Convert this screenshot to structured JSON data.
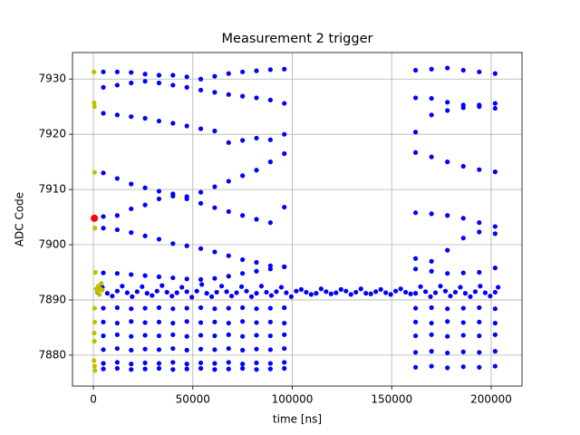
{
  "chart_data": {
    "type": "scatter",
    "title": "Measurement 2 trigger",
    "xlabel": "time [ns]",
    "ylabel": "ADC Code",
    "xlim": [
      -10500,
      215500
    ],
    "ylim": [
      7874.4,
      7934.8
    ],
    "xticks": [
      0,
      50000,
      100000,
      150000,
      200000
    ],
    "yticks": [
      7880,
      7890,
      7900,
      7910,
      7920,
      7930
    ],
    "grid": true,
    "series": [
      {
        "color": "#0000ff",
        "x": [
          2000,
          7000,
          12000,
          17000,
          22000,
          27000,
          32000,
          37000,
          42000,
          47000,
          52000,
          57000,
          62000,
          67000,
          72000,
          77000,
          82000,
          87000,
          92000,
          97000,
          102000,
          107000,
          112000,
          117000,
          122000,
          127000,
          132000,
          137000,
          142000,
          147000,
          152000,
          157000,
          162000,
          167000,
          172000,
          177000,
          182000,
          187000,
          192000,
          197000,
          202000
        ],
        "values": [
          7891.4,
          7891.2,
          7891.6,
          7891.3,
          7891.5,
          7891.2,
          7891.6,
          7891.4,
          7891.3,
          7891.5,
          7891.6,
          7891.2,
          7891.4,
          7891.5,
          7891.3,
          7891.6,
          7891.2,
          7891.4,
          7891.5,
          7891.3,
          7891.6,
          7891.4,
          7891.2,
          7891.5,
          7891.3,
          7891.6,
          7891.4,
          7891.2,
          7891.5,
          7891.3,
          7891.6,
          7891.4,
          7891.2,
          7891.5,
          7891.3,
          7891.6,
          7891.4,
          7891.2,
          7891.5,
          7891.3,
          7891.4
        ]
      },
      {
        "color": "#0000ff",
        "x": [
          4500,
          9500,
          14500,
          19500,
          24500,
          29500,
          34500,
          39500,
          44500,
          49500,
          54500,
          59500,
          64500,
          69500,
          74500,
          79500,
          84500,
          89500,
          94500,
          99500,
          104500,
          109500,
          114500,
          119500,
          124500,
          129500,
          134500,
          139500,
          144500,
          149500,
          154500,
          159500,
          164500,
          169500,
          174500,
          179500,
          184500,
          189500,
          194500,
          199500,
          203500
        ],
        "values": [
          7892.3,
          7890.7,
          7892.5,
          7890.6,
          7892.4,
          7890.8,
          7892.6,
          7890.7,
          7892.3,
          7890.5,
          7892.8,
          7890.6,
          7892.5,
          7890.7,
          7892.4,
          7890.6,
          7892.5,
          7890.8,
          7892.3,
          7890.6,
          7891.9,
          7891.0,
          7892.0,
          7891.1,
          7891.9,
          7891.0,
          7892.0,
          7891.1,
          7891.9,
          7891.0,
          7892.0,
          7891.1,
          7892.4,
          7890.6,
          7892.5,
          7890.7,
          7892.3,
          7890.6,
          7892.5,
          7890.7,
          7892.3
        ]
      },
      {
        "color": "#0000ff",
        "x": [
          5000,
          12000,
          19000,
          26000,
          33000,
          40000,
          47000,
          54000,
          61000,
          68000,
          75000,
          82000,
          89000,
          96000
        ],
        "values": [
          7931.3,
          7931.3,
          7931.2,
          7930.9,
          7930.7,
          7930.7,
          7930.4,
          7930.0,
          7930.5,
          7931.0,
          7931.3,
          7931.5,
          7931.7,
          7931.8
        ]
      },
      {
        "color": "#0000ff",
        "x": [
          5000,
          12000,
          19000,
          26000,
          33000,
          40000,
          47000,
          54000,
          61000,
          68000,
          75000,
          82000,
          89000,
          96000
        ],
        "values": [
          7928.5,
          7928.9,
          7929.3,
          7929.6,
          7929.3,
          7928.9,
          7928.5,
          7928.0,
          7927.6,
          7927.2,
          7926.9,
          7926.6,
          7926.2,
          7925.6
        ]
      },
      {
        "color": "#0000ff",
        "x": [
          5000,
          12000,
          19000,
          26000,
          33000,
          40000,
          47000,
          54000,
          61000,
          68000,
          75000,
          82000,
          89000,
          96000
        ],
        "values": [
          7923.8,
          7923.5,
          7923.2,
          7922.9,
          7922.4,
          7922.0,
          7921.5,
          7921.0,
          7920.6,
          7918.5,
          7918.9,
          7919.3,
          7919.0,
          7920.0
        ]
      },
      {
        "color": "#0000ff",
        "x": [
          5000,
          12000,
          19000,
          26000,
          33000,
          40000,
          47000,
          54000,
          61000,
          68000,
          75000,
          82000,
          89000,
          96000
        ],
        "values": [
          7913.0,
          7912.0,
          7911.0,
          7910.3,
          7909.7,
          7909.2,
          7908.7,
          7909.5,
          7910.5,
          7911.5,
          7912.5,
          7913.5,
          7915.0,
          7916.5
        ]
      },
      {
        "color": "#0000ff",
        "x": [
          5000,
          12000,
          19000,
          26000,
          33000,
          40000,
          47000,
          54000,
          61000,
          68000,
          75000,
          82000,
          89000,
          96000
        ],
        "values": [
          7905.1,
          7905.3,
          7906.5,
          7907.2,
          7908.3,
          7908.8,
          7908.3,
          7907.5,
          7906.7,
          7906.0,
          7905.3,
          7904.6,
          7904.0,
          7906.8
        ]
      },
      {
        "color": "#0000ff",
        "x": [
          5000,
          12000,
          19000,
          26000,
          33000,
          40000,
          47000,
          54000,
          61000,
          68000,
          75000,
          82000,
          89000,
          96000
        ],
        "values": [
          7903.0,
          7902.7,
          7902.2,
          7901.6,
          7901.0,
          7900.2,
          7899.8,
          7899.3,
          7898.7,
          7898.0,
          7897.3,
          7896.8,
          7896.2,
          7896.0
        ]
      },
      {
        "color": "#0000ff",
        "x": [
          5000,
          12000,
          19000,
          26000,
          33000,
          40000,
          47000,
          54000,
          61000,
          68000,
          75000,
          82000,
          89000,
          96000
        ],
        "values": [
          7894.9,
          7894.8,
          7894.6,
          7894.4,
          7894.2,
          7894.0,
          7893.8,
          7893.7,
          7893.9,
          7894.3,
          7894.8,
          7895.2,
          7895.6,
          7896.0
        ]
      },
      {
        "color": "#0000ff",
        "x": [
          5000,
          12000,
          19000,
          26000,
          33000,
          40000,
          47000,
          54000,
          61000,
          68000,
          75000,
          82000,
          89000,
          96000
        ],
        "values": [
          7888.5,
          7888.6,
          7888.4,
          7888.5,
          7888.6,
          7888.4,
          7888.5,
          7888.6,
          7888.4,
          7888.5,
          7888.6,
          7888.4,
          7888.5,
          7888.6
        ]
      },
      {
        "color": "#0000ff",
        "x": [
          5000,
          12000,
          19000,
          26000,
          33000,
          40000,
          47000,
          54000,
          61000,
          68000,
          75000,
          82000,
          89000,
          96000
        ],
        "values": [
          7886.0,
          7885.8,
          7886.1,
          7885.9,
          7886.0,
          7885.8,
          7886.1,
          7885.9,
          7886.0,
          7885.8,
          7886.1,
          7885.9,
          7886.0,
          7885.8
        ]
      },
      {
        "color": "#0000ff",
        "x": [
          5000,
          12000,
          19000,
          26000,
          33000,
          40000,
          47000,
          54000,
          61000,
          68000,
          75000,
          82000,
          89000,
          96000
        ],
        "values": [
          7883.5,
          7883.7,
          7883.4,
          7883.6,
          7883.5,
          7883.7,
          7883.4,
          7883.6,
          7883.5,
          7883.7,
          7883.4,
          7883.6,
          7883.5,
          7883.7
        ]
      },
      {
        "color": "#0000ff",
        "x": [
          5000,
          12000,
          19000,
          26000,
          33000,
          40000,
          47000,
          54000,
          61000,
          68000,
          75000,
          82000,
          89000,
          96000
        ],
        "values": [
          7881.0,
          7881.2,
          7880.9,
          7881.1,
          7881.0,
          7881.2,
          7880.9,
          7881.1,
          7881.0,
          7881.2,
          7880.9,
          7881.1,
          7881.0,
          7881.2
        ]
      },
      {
        "color": "#0000ff",
        "x": [
          5000,
          12000,
          19000,
          26000,
          33000,
          40000,
          47000,
          54000,
          61000,
          68000,
          75000,
          82000,
          89000,
          96000
        ],
        "values": [
          7878.5,
          7878.7,
          7878.4,
          7878.6,
          7878.5,
          7878.7,
          7878.4,
          7878.6,
          7878.5,
          7878.7,
          7878.4,
          7878.6,
          7878.5,
          7878.7
        ]
      },
      {
        "color": "#0000ff",
        "x": [
          5000,
          12000,
          19000,
          26000,
          33000,
          40000,
          47000,
          54000,
          61000,
          68000,
          75000,
          82000,
          89000,
          96000
        ],
        "values": [
          7877.5,
          7877.6,
          7877.4,
          7877.5,
          7877.6,
          7877.4,
          7877.5,
          7877.6,
          7877.4,
          7877.5,
          7877.6,
          7877.4,
          7877.5,
          7877.6
        ]
      },
      {
        "color": "#0000ff",
        "x": [
          162000,
          170000,
          178000,
          186000,
          194000,
          202000
        ],
        "values": [
          7931.6,
          7931.8,
          7932.0,
          7931.6,
          7931.3,
          7931.0
        ]
      },
      {
        "color": "#0000ff",
        "x": [
          162000,
          170000,
          178000,
          186000,
          194000,
          202000
        ],
        "values": [
          7926.6,
          7926.5,
          7925.8,
          7925.3,
          7925.0,
          7924.7
        ]
      },
      {
        "color": "#0000ff",
        "x": [
          162000,
          170000,
          178000,
          186000,
          194000,
          202000
        ],
        "values": [
          7920.4,
          7923.5,
          7924.3,
          7924.8,
          7925.3,
          7925.6
        ]
      },
      {
        "color": "#0000ff",
        "x": [
          162000,
          170000,
          178000,
          186000,
          194000,
          202000
        ],
        "values": [
          7916.7,
          7915.9,
          7915.0,
          7914.2,
          7913.6,
          7913.2
        ]
      },
      {
        "color": "#0000ff",
        "x": [
          162000,
          170000,
          178000,
          186000,
          194000,
          202000
        ],
        "values": [
          7905.8,
          7905.6,
          7905.3,
          7904.8,
          7904.0,
          7903.3
        ]
      },
      {
        "color": "#0000ff",
        "x": [
          162000,
          170000,
          178000,
          186000,
          194000,
          202000
        ],
        "values": [
          7897.5,
          7897.0,
          7899.0,
          7901.2,
          7902.3,
          7902.0
        ]
      },
      {
        "color": "#0000ff",
        "x": [
          162000,
          170000,
          178000,
          186000,
          194000,
          202000
        ],
        "values": [
          7895.6,
          7895.2,
          7894.8,
          7894.9,
          7895.0,
          7895.8
        ]
      },
      {
        "color": "#0000ff",
        "x": [
          162000,
          170000,
          178000,
          186000,
          194000,
          202000
        ],
        "values": [
          7888.5,
          7888.6,
          7888.4,
          7888.5,
          7888.6,
          7888.4
        ]
      },
      {
        "color": "#0000ff",
        "x": [
          162000,
          170000,
          178000,
          186000,
          194000,
          202000
        ],
        "values": [
          7886.0,
          7885.8,
          7886.1,
          7885.9,
          7886.0,
          7885.8
        ]
      },
      {
        "color": "#0000ff",
        "x": [
          162000,
          170000,
          178000,
          186000,
          194000,
          202000
        ],
        "values": [
          7883.5,
          7883.7,
          7883.4,
          7883.6,
          7883.5,
          7883.7
        ]
      },
      {
        "color": "#0000ff",
        "x": [
          162000,
          170000,
          178000,
          186000,
          194000,
          202000
        ],
        "values": [
          7880.5,
          7880.7,
          7880.4,
          7880.6,
          7880.5,
          7880.7
        ]
      },
      {
        "color": "#0000ff",
        "x": [
          162000,
          170000,
          178000,
          186000,
          194000,
          202000
        ],
        "values": [
          7877.8,
          7878.0,
          7877.7,
          7877.9,
          7877.8,
          7878.0
        ]
      },
      {
        "color": "#bfbf00",
        "x": [
          300,
          400,
          500,
          600,
          800,
          1000,
          1500,
          2000,
          2500,
          3000,
          3500,
          4000,
          4500,
          600,
          700,
          400,
          500,
          300,
          600,
          800
        ],
        "values": [
          7931.3,
          7925.7,
          7925.0,
          7913.1,
          7903.0,
          7895.0,
          7892.0,
          7891.5,
          7892.5,
          7891.0,
          7892.0,
          7893.0,
          7891.8,
          7888.5,
          7886.0,
          7884.0,
          7882.5,
          7879.0,
          7878.0,
          7877.2
        ]
      },
      {
        "color": "#ff0000",
        "x": [
          500
        ],
        "values": [
          7904.8
        ]
      }
    ]
  }
}
